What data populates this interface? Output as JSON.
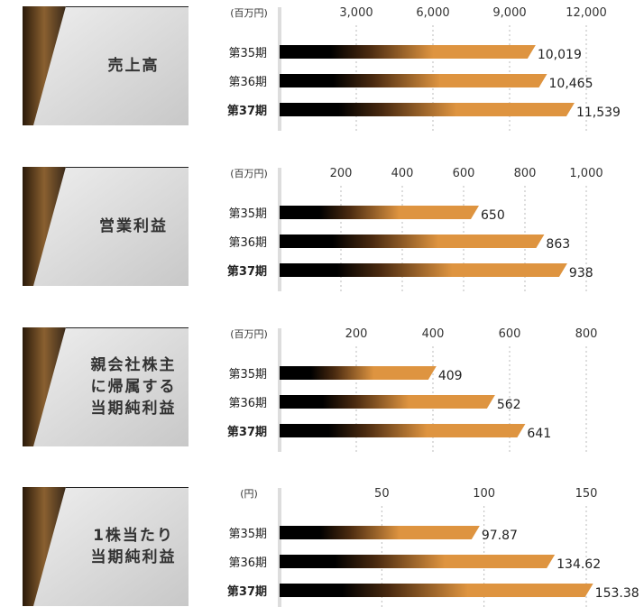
{
  "colors": {
    "bar_start": "#000000",
    "bar_mid": "#4a2a10",
    "bar_end": "#de9440",
    "gridline": "#bbbbbb",
    "axis": "#dddddd",
    "card": "#d6d6d6"
  },
  "chart_data": [
    {
      "type": "bar",
      "title": "売上高",
      "unit": "(百万円)",
      "categories": [
        "第35期",
        "第36期",
        "第37期"
      ],
      "highlight": "第37期",
      "values": [
        10019,
        10465,
        11539
      ],
      "value_labels": [
        "10,019",
        "10,465",
        "11,539"
      ],
      "ticks": [
        3000,
        6000,
        9000,
        12000
      ],
      "tick_labels": [
        "3,000",
        "6,000",
        "9,000",
        "12,000"
      ],
      "xlim": [
        0,
        12000
      ]
    },
    {
      "type": "bar",
      "title": "営業利益",
      "unit": "(百万円)",
      "categories": [
        "第35期",
        "第36期",
        "第37期"
      ],
      "highlight": "第37期",
      "values": [
        650,
        863,
        938
      ],
      "value_labels": [
        "650",
        "863",
        "938"
      ],
      "ticks": [
        200,
        400,
        600,
        800,
        1000
      ],
      "tick_labels": [
        "200",
        "400",
        "600",
        "800",
        "1,000"
      ],
      "xlim": [
        0,
        1000
      ]
    },
    {
      "type": "bar",
      "title": "親会社株主\nに帰属する\n当期純利益",
      "unit": "(百万円)",
      "categories": [
        "第35期",
        "第36期",
        "第37期"
      ],
      "highlight": "第37期",
      "values": [
        409,
        562,
        641
      ],
      "value_labels": [
        "409",
        "562",
        "641"
      ],
      "ticks": [
        200,
        400,
        600,
        800
      ],
      "tick_labels": [
        "200",
        "400",
        "600",
        "800"
      ],
      "xlim": [
        0,
        800
      ]
    },
    {
      "type": "bar",
      "title": "1株当たり\n当期純利益",
      "unit": "(円)",
      "categories": [
        "第35期",
        "第36期",
        "第37期"
      ],
      "highlight": "第37期",
      "values": [
        97.87,
        134.62,
        153.38
      ],
      "value_labels": [
        "97.87",
        "134.62",
        "153.38"
      ],
      "ticks": [
        50,
        100,
        150
      ],
      "tick_labels": [
        "50",
        "100",
        "150"
      ],
      "xlim": [
        0,
        150
      ]
    }
  ]
}
